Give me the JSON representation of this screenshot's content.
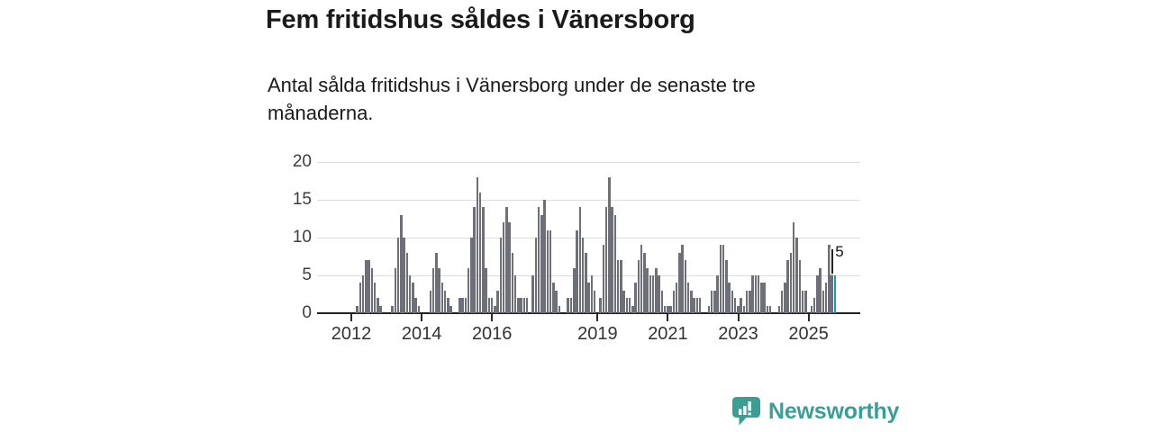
{
  "title": "Fem fritidshus såldes i Vänersborg",
  "subtitle": "Antal sålda fritidshus i Vänersborg under de senaste tre månaderna.",
  "chart_data": {
    "type": "bar",
    "title": "Fem fritidshus såldes i Vänersborg",
    "xlabel": "",
    "ylabel": "",
    "frequency": "monthly",
    "x_start": "2012-01",
    "x_end": "2025-10",
    "ylim": [
      0,
      20
    ],
    "yticks": [
      0,
      5,
      10,
      15,
      20
    ],
    "grid": "horizontal",
    "xtick_years": [
      2012,
      2014,
      2016,
      2019,
      2021,
      2023,
      2025
    ],
    "xtick_labels": [
      "2012",
      "2014",
      "2016",
      "2019",
      "2021",
      "2023",
      "2025"
    ],
    "values": [
      0,
      0,
      1,
      4,
      5,
      7,
      7,
      6,
      4,
      2,
      1,
      0,
      0,
      0,
      1,
      6,
      10,
      13,
      10,
      8,
      5,
      4,
      2,
      1,
      0,
      0,
      0,
      3,
      6,
      8,
      6,
      4,
      3,
      2,
      1,
      0,
      0,
      2,
      2,
      2,
      6,
      10,
      14,
      18,
      16,
      14,
      6,
      2,
      2,
      1,
      3,
      10,
      12,
      14,
      12,
      8,
      5,
      2,
      2,
      2,
      2,
      0,
      5,
      10,
      14,
      13,
      15,
      11,
      11,
      4,
      3,
      1,
      0,
      0,
      2,
      2,
      6,
      11,
      14,
      10,
      8,
      4,
      5,
      3,
      0,
      2,
      9,
      14,
      18,
      14,
      13,
      7,
      7,
      3,
      2,
      2,
      1,
      4,
      7,
      9,
      8,
      6,
      5,
      5,
      6,
      5,
      3,
      1,
      1,
      1,
      3,
      4,
      8,
      9,
      7,
      4,
      3,
      2,
      2,
      2,
      0,
      0,
      1,
      3,
      3,
      5,
      9,
      9,
      7,
      4,
      3,
      2,
      1,
      2,
      1,
      3,
      3,
      5,
      5,
      5,
      4,
      4,
      1,
      1,
      0,
      0,
      1,
      3,
      4,
      7,
      8,
      12,
      10,
      7,
      3,
      3,
      0,
      1,
      2,
      5,
      6,
      3,
      4,
      9,
      7,
      5
    ],
    "bar_color": "#6f6f79",
    "highlight_color": "#14a3a4",
    "highlight_index": 165,
    "annotation": {
      "label": "5"
    }
  },
  "footer": {
    "brand": "Newsworthy",
    "brand_color": "#3b9e96"
  }
}
